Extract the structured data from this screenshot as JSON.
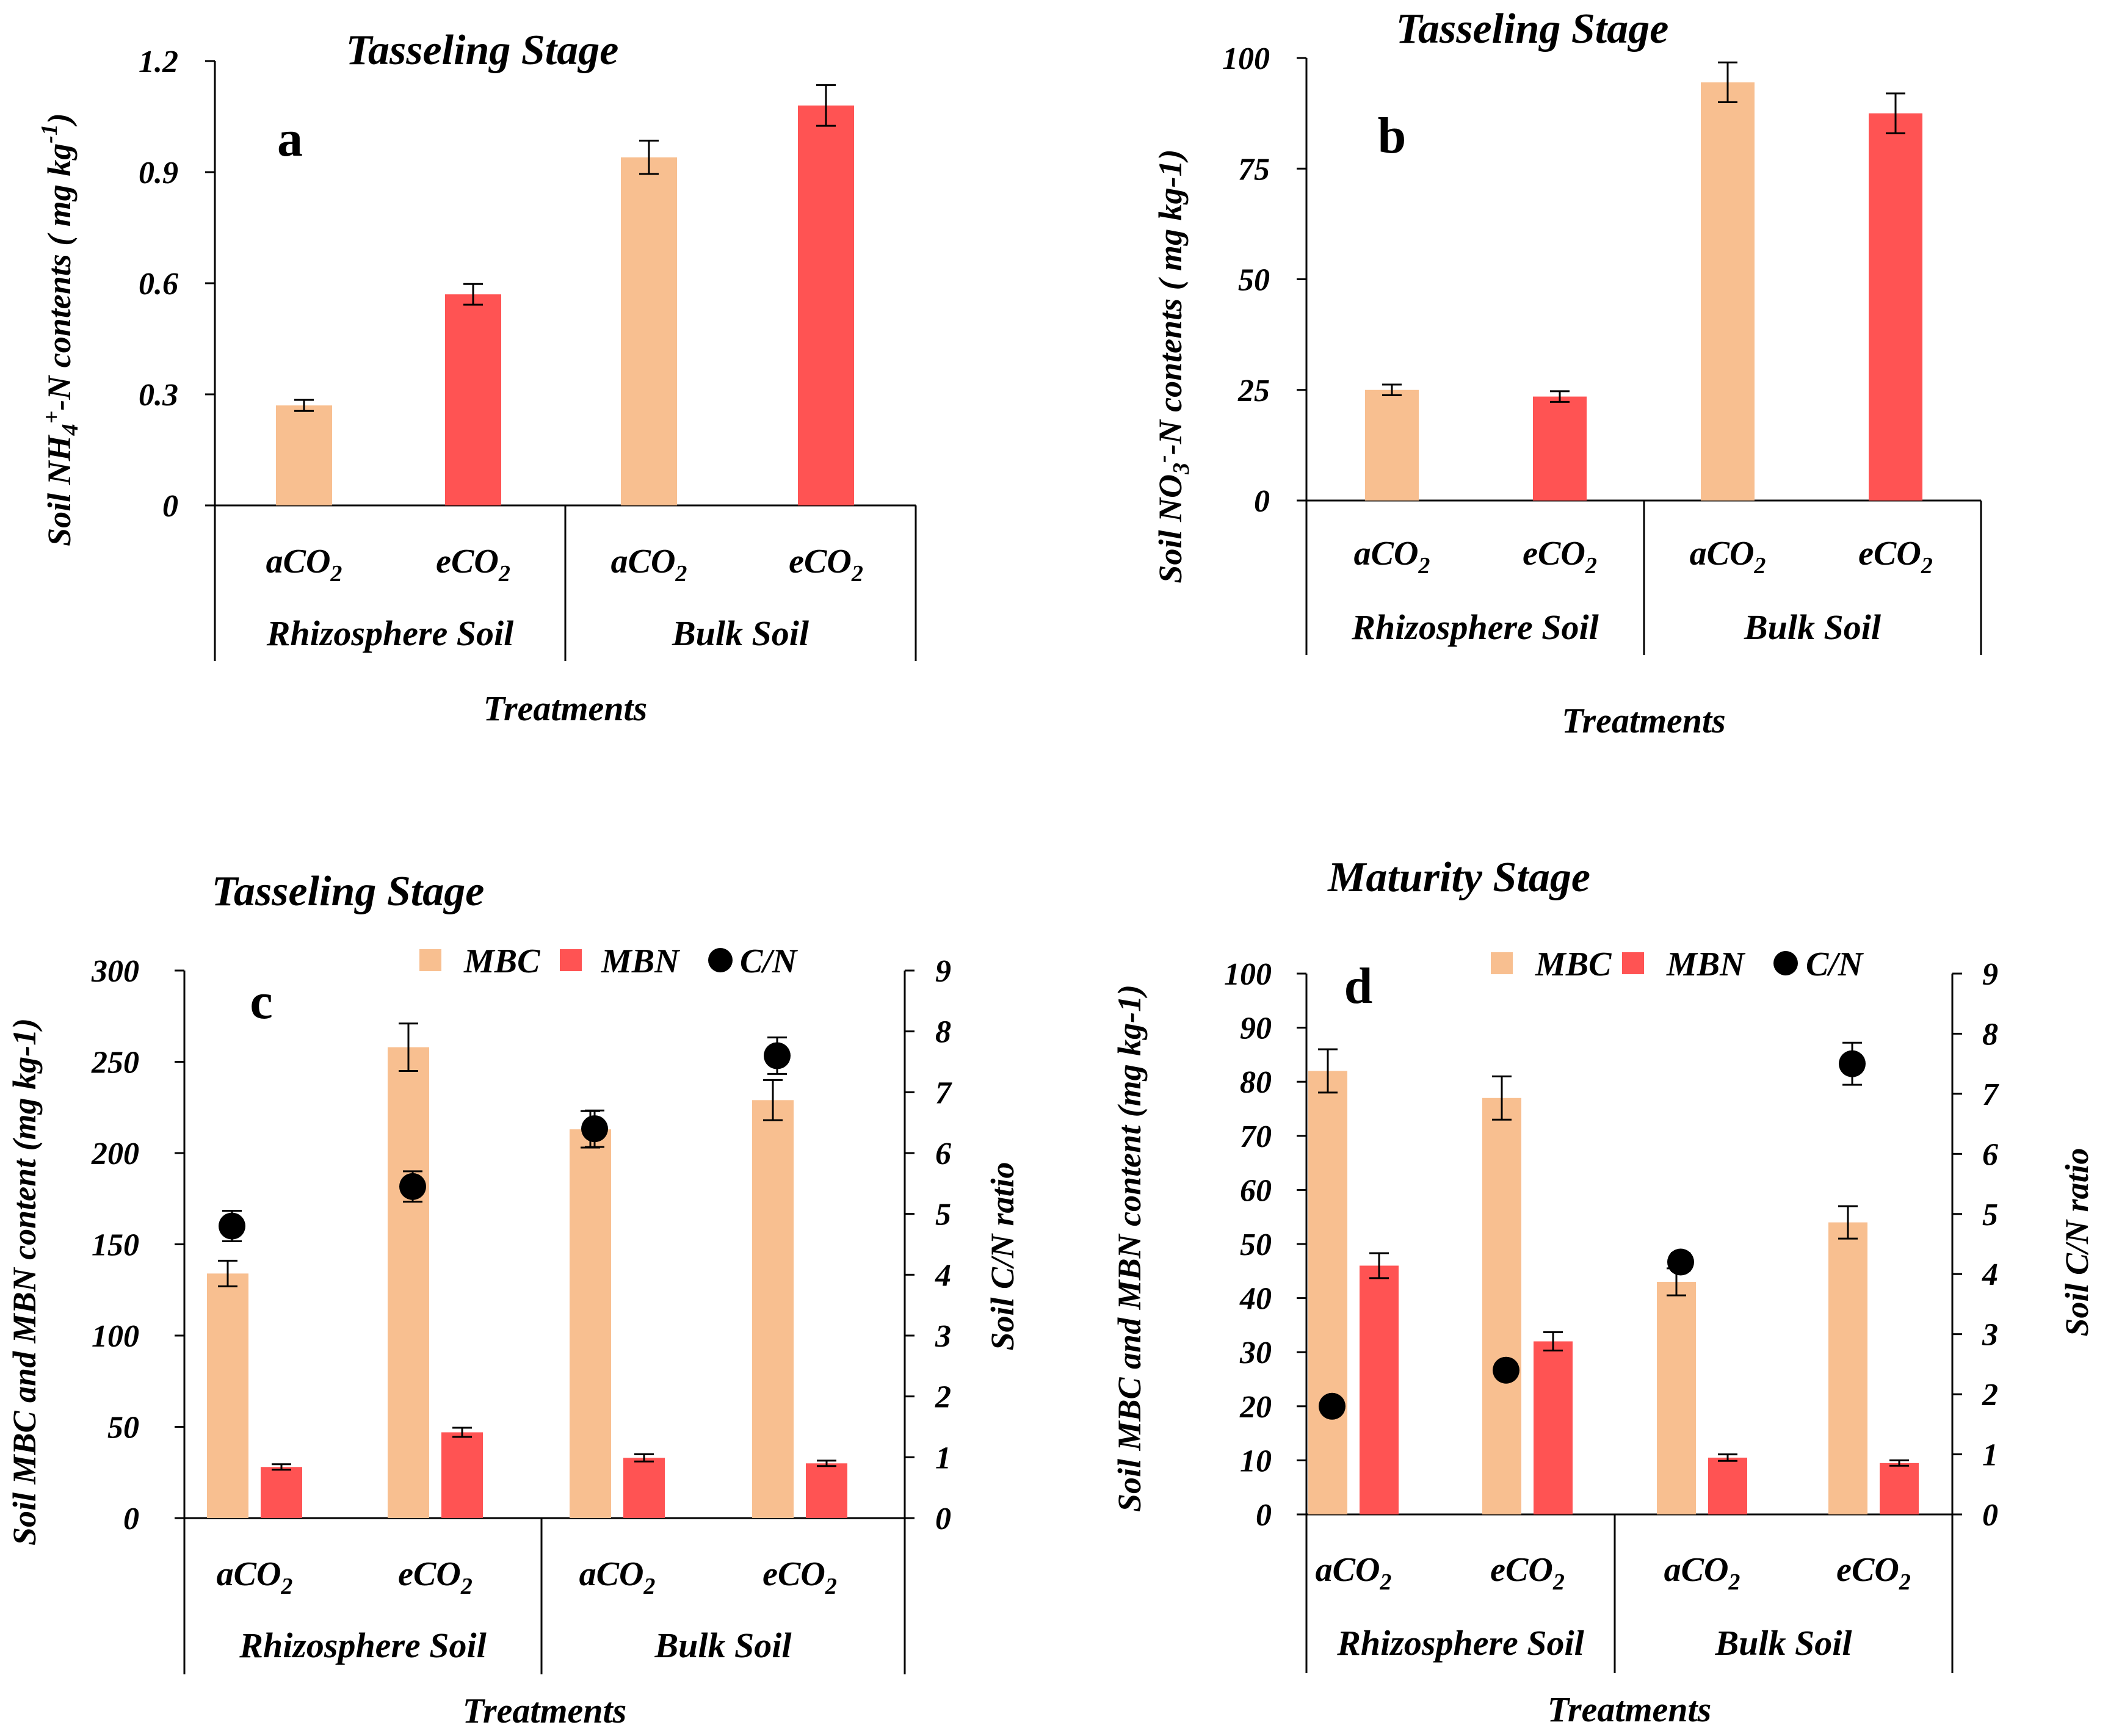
{
  "colors": {
    "aCO2": "#F8BF90",
    "eCO2": "#FF5353",
    "cn": "#000000",
    "axis": "#000000"
  },
  "common": {
    "xlabel": "Treatments",
    "group_labels": [
      "Rhizosphere Soil",
      "Bulk Soil"
    ],
    "treatments": [
      "aCO",
      "eCO",
      "aCO",
      "eCO"
    ],
    "subscript": "2",
    "legend": {
      "mbc": "MBC",
      "mbn": "MBN",
      "cn": "C/N"
    }
  },
  "chart_data": [
    {
      "id": "a",
      "type": "bar",
      "title": "Tasseling Stage",
      "panel_letter": "a",
      "ylabel": "Soil NH4+-N contents ( mg kg-1)",
      "ylabel_parts": {
        "pre": "Soil NH",
        "sub": "4",
        "sup": "+",
        "mid": "-N contents ( mg kg",
        "sup2": "-1",
        "post": ")"
      },
      "ylim": [
        0,
        1.2
      ],
      "yticks": [
        "0",
        "0.3",
        "0.6",
        "0.9",
        "1.2"
      ],
      "categories": [
        "Rhizosphere Soil aCO2",
        "Rhizosphere Soil eCO2",
        "Bulk Soil aCO2",
        "Bulk Soil eCO2"
      ],
      "values": [
        0.27,
        0.57,
        0.94,
        1.08
      ],
      "errors": [
        0.015,
        0.028,
        0.045,
        0.055
      ]
    },
    {
      "id": "b",
      "type": "bar",
      "title": "Tasseling Stage",
      "panel_letter": "b",
      "ylabel": "Soil NO3--N contents ( mg kg-1)",
      "ylabel_parts": {
        "pre": "Soil NO",
        "sub": "3",
        "sup": "-",
        "post": "-N contents ( mg kg-1)"
      },
      "ylim": [
        0,
        100
      ],
      "yticks": [
        "0",
        "25",
        "50",
        "75",
        "100"
      ],
      "categories": [
        "Rhizosphere Soil aCO2",
        "Rhizosphere Soil eCO2",
        "Bulk Soil aCO2",
        "Bulk Soil eCO2"
      ],
      "values": [
        25,
        23.5,
        94.5,
        87.5
      ],
      "errors": [
        1.2,
        1.2,
        4.5,
        4.5
      ]
    },
    {
      "id": "c",
      "type": "bar",
      "title": "Tasseling Stage",
      "panel_letter": "c",
      "ylabel": "Soil MBC and MBN content (mg kg-1)",
      "y2label": "Soil C/N ratio",
      "ylim": [
        0,
        300
      ],
      "yticks": [
        "0",
        "50",
        "100",
        "150",
        "200",
        "250",
        "300"
      ],
      "y2lim": [
        0,
        9
      ],
      "y2ticks": [
        "0",
        "1",
        "2",
        "3",
        "4",
        "5",
        "6",
        "7",
        "8",
        "9"
      ],
      "categories": [
        "Rhizosphere Soil aCO2",
        "Rhizosphere Soil eCO2",
        "Bulk Soil aCO2",
        "Bulk Soil eCO2"
      ],
      "series": [
        {
          "name": "MBC",
          "values": [
            134,
            258,
            213,
            229
          ],
          "errors": [
            7,
            13,
            10,
            11
          ]
        },
        {
          "name": "MBN",
          "values": [
            28,
            47,
            33,
            30
          ],
          "errors": [
            1.5,
            2.5,
            2,
            1.5
          ]
        },
        {
          "name": "C/N",
          "values": [
            4.8,
            5.45,
            6.4,
            7.6
          ],
          "errors": [
            0.25,
            0.25,
            0.3,
            0.3
          ]
        }
      ]
    },
    {
      "id": "d",
      "type": "bar",
      "title": "Maturity Stage",
      "panel_letter": "d",
      "ylabel": "Soil MBC and MBN content (mg kg-1)",
      "y2label": "Soil C/N ratio",
      "ylim": [
        0,
        100
      ],
      "yticks": [
        "0",
        "10",
        "20",
        "30",
        "40",
        "50",
        "60",
        "70",
        "80",
        "90",
        "100"
      ],
      "y2lim": [
        0,
        9
      ],
      "y2ticks": [
        "0",
        "1",
        "2",
        "3",
        "4",
        "5",
        "6",
        "7",
        "8",
        "9"
      ],
      "categories": [
        "Rhizosphere Soil aCO2",
        "Rhizosphere Soil eCO2",
        "Bulk Soil aCO2",
        "Bulk Soil eCO2"
      ],
      "series": [
        {
          "name": "MBC",
          "values": [
            82,
            77,
            43,
            54
          ],
          "errors": [
            4,
            4,
            2.5,
            3
          ]
        },
        {
          "name": "MBN",
          "values": [
            46,
            32,
            10.5,
            9.5
          ],
          "errors": [
            2.3,
            1.7,
            0.6,
            0.5
          ]
        },
        {
          "name": "C/N",
          "values": [
            1.8,
            2.4,
            4.2,
            7.5
          ],
          "errors": [
            0,
            0,
            0.15,
            0.35
          ]
        }
      ]
    }
  ]
}
